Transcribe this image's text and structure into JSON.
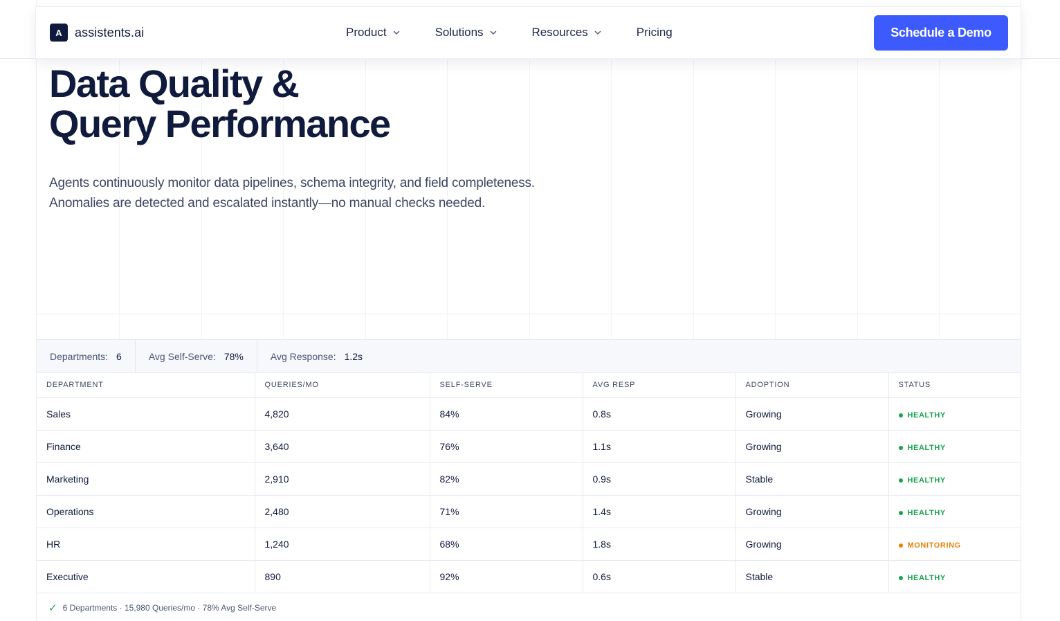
{
  "brand": {
    "logo_letter": "A",
    "name": "assistents.ai"
  },
  "nav": {
    "items": [
      {
        "label": "Product",
        "has_dropdown": true
      },
      {
        "label": "Solutions",
        "has_dropdown": true
      },
      {
        "label": "Resources",
        "has_dropdown": true
      },
      {
        "label": "Pricing",
        "has_dropdown": false
      }
    ],
    "cta_label": "Schedule a Demo"
  },
  "hero": {
    "title_line1": "Data Quality &",
    "title_line2": "Query Performance",
    "description": "Agents continuously monitor data pipelines, schema integrity, and field completeness. Anomalies are detected and escalated instantly—no manual checks needed."
  },
  "summary": {
    "departments_label": "Departments:",
    "departments_value": "6",
    "self_serve_label": "Avg Self-Serve:",
    "self_serve_value": "78%",
    "response_label": "Avg Response:",
    "response_value": "1.2s"
  },
  "table": {
    "headers": [
      "DEPARTMENT",
      "QUERIES/MO",
      "SELF-SERVE",
      "AVG RESP",
      "ADOPTION",
      "STATUS"
    ],
    "rows": [
      {
        "department": "Sales",
        "queries": "4,820",
        "self_serve": "84%",
        "avg_resp": "0.8s",
        "adoption": "Growing",
        "status": "HEALTHY",
        "status_color": "#16a34a"
      },
      {
        "department": "Finance",
        "queries": "3,640",
        "self_serve": "76%",
        "avg_resp": "1.1s",
        "adoption": "Growing",
        "status": "HEALTHY",
        "status_color": "#16a34a"
      },
      {
        "department": "Marketing",
        "queries": "2,910",
        "self_serve": "82%",
        "avg_resp": "0.9s",
        "adoption": "Stable",
        "status": "HEALTHY",
        "status_color": "#16a34a"
      },
      {
        "department": "Operations",
        "queries": "2,480",
        "self_serve": "71%",
        "avg_resp": "1.4s",
        "adoption": "Growing",
        "status": "HEALTHY",
        "status_color": "#16a34a"
      },
      {
        "department": "HR",
        "queries": "1,240",
        "self_serve": "68%",
        "avg_resp": "1.8s",
        "adoption": "Growing",
        "status": "MONITORING",
        "status_color": "#e8810c"
      },
      {
        "department": "Executive",
        "queries": "890",
        "self_serve": "92%",
        "avg_resp": "0.6s",
        "adoption": "Stable",
        "status": "HEALTHY",
        "status_color": "#16a34a"
      }
    ]
  },
  "footer": {
    "check_icon": "check-icon",
    "summary": "6 Departments · 15,980 Queries/mo · 78% Avg Self-Serve"
  },
  "colors": {
    "accent": "#3d5afe",
    "navy": "#0f1a3d",
    "healthy": "#16a34a",
    "monitoring": "#e8810c"
  }
}
